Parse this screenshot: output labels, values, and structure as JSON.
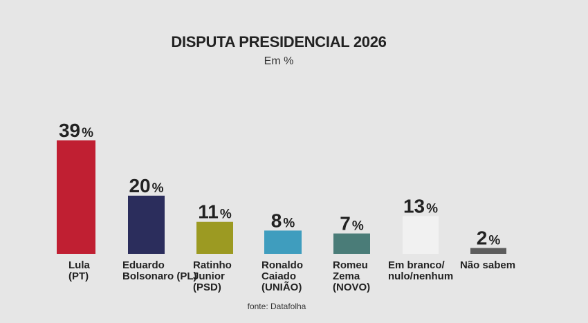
{
  "chart_data": {
    "type": "bar",
    "title": "DISPUTA PRESIDENCIAL 2026",
    "subtitle": "Em %",
    "categories": [
      [
        "Lula",
        "(PT)"
      ],
      [
        "Eduardo",
        "Bolsonaro (PL)"
      ],
      [
        "Ratinho",
        "Junior",
        "(PSD)"
      ],
      [
        "Ronaldo",
        "Caiado",
        "(UNIÃO)"
      ],
      [
        "Romeu",
        "Zema",
        "(NOVO)"
      ],
      [
        "Em branco/",
        "nulo/nenhum"
      ],
      [
        "Não sabem"
      ]
    ],
    "values": [
      39,
      20,
      11,
      8,
      7,
      13,
      2
    ],
    "value_suffix": "%",
    "colors": [
      "#c01f32",
      "#2b2d5c",
      "#9c9a22",
      "#3f9dbe",
      "#4a7c78",
      "#f1f1f1",
      "#5d5d5d"
    ],
    "ylim": [
      0,
      40
    ],
    "source": "fonte: Datafolha"
  }
}
